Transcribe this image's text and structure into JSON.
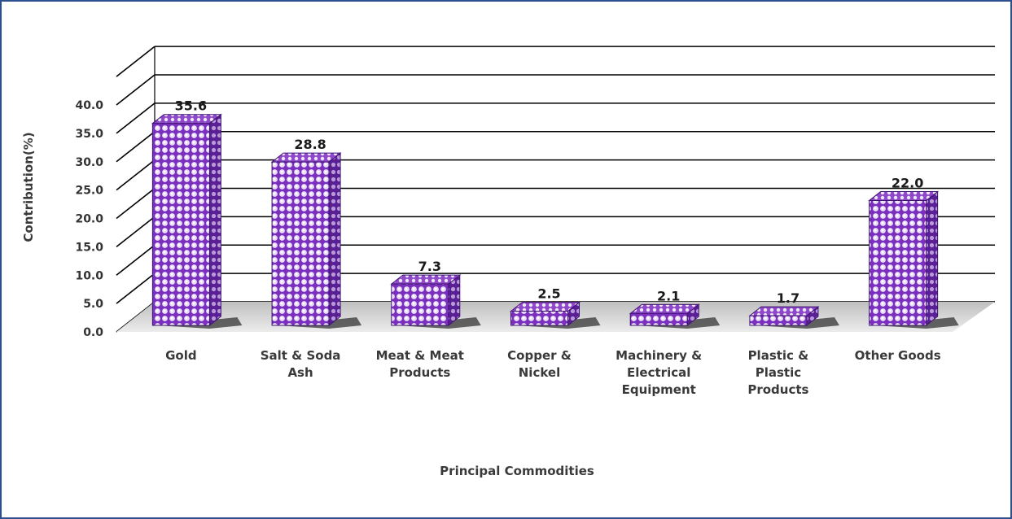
{
  "chart_data": {
    "type": "bar",
    "title": "",
    "xlabel": "Principal Commodities",
    "ylabel": "Contribution(%)",
    "categories": [
      [
        "Gold"
      ],
      [
        "Salt & Soda",
        "Ash"
      ],
      [
        "Meat & Meat",
        "Products"
      ],
      [
        "Copper &",
        "Nickel"
      ],
      [
        "Machinery &",
        "Electrical",
        "Equipment"
      ],
      [
        "Plastic &",
        "Plastic",
        "Products"
      ],
      [
        "Other Goods"
      ]
    ],
    "values": [
      35.6,
      28.8,
      7.3,
      2.5,
      2.1,
      1.7,
      22.0
    ],
    "value_labels": [
      "35.6",
      "28.8",
      "7.3",
      "2.5",
      "2.1",
      "1.7",
      "22.0"
    ],
    "yticks": [
      "0.0",
      "5.0",
      "10.0",
      "15.0",
      "20.0",
      "25.0",
      "30.0",
      "35.0",
      "40.0"
    ],
    "ylim": [
      0,
      45
    ],
    "grid": true,
    "legend": "none",
    "colors": {
      "bar_face": "#7b2fbe",
      "bar_dot": "#e8ddf5",
      "bar_top": "#9b59d0",
      "bar_side": "#4f1a85",
      "gridline": "#000000",
      "floor": "#d9d9d9",
      "frame": "#2d4f8e"
    }
  }
}
